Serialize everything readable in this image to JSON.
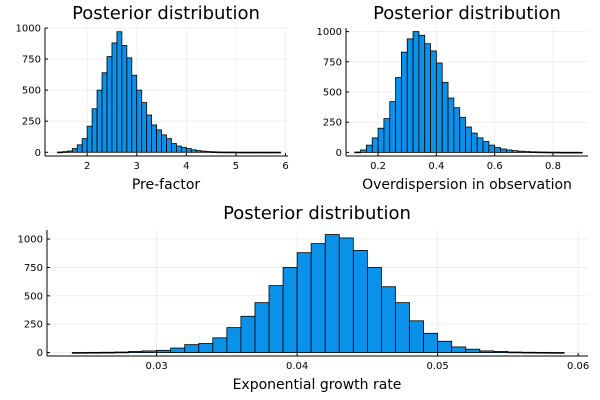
{
  "colors": {
    "bar": "#0a92ea",
    "bar_edge": "#000000",
    "grid": "#e6e6e6",
    "axis": "#000000"
  },
  "chart_data": [
    {
      "type": "bar",
      "title": "Posterior distribution",
      "xlabel": "Pre-factor",
      "ylabel": "",
      "grid": true,
      "xlim": [
        1.15,
        6.05
      ],
      "ylim": [
        -30,
        1000
      ],
      "xticks": [
        2,
        3,
        4,
        5,
        6
      ],
      "xtick_labels": [
        "2",
        "3",
        "4",
        "5",
        "6"
      ],
      "yticks": [
        0,
        250,
        500,
        750,
        1000
      ],
      "ytick_labels": [
        "0",
        "250",
        "500",
        "750",
        "1000"
      ],
      "bin_start": 1.4,
      "bin_width": 0.1,
      "values": [
        2,
        5,
        10,
        30,
        60,
        110,
        210,
        350,
        500,
        640,
        770,
        880,
        970,
        860,
        760,
        620,
        500,
        400,
        300,
        220,
        180,
        140,
        110,
        70,
        50,
        40,
        30,
        20,
        14,
        9,
        6,
        4,
        3,
        2,
        2,
        2,
        1,
        1,
        1,
        1,
        1,
        1,
        1,
        1,
        1
      ]
    },
    {
      "type": "bar",
      "title": "Posterior distribution",
      "xlabel": "Overdispersion in observation",
      "ylabel": "",
      "grid": true,
      "xlim": [
        0.09,
        0.92
      ],
      "ylim": [
        -30,
        1030
      ],
      "xticks": [
        0.2,
        0.4,
        0.6,
        0.8
      ],
      "xtick_labels": [
        "0.2",
        "0.4",
        "0.6",
        "0.8"
      ],
      "yticks": [
        0,
        250,
        500,
        750,
        1000
      ],
      "ytick_labels": [
        "0",
        "250",
        "500",
        "750",
        "1000"
      ],
      "bin_start": 0.12,
      "bin_width": 0.02,
      "values": [
        3,
        20,
        60,
        120,
        200,
        280,
        420,
        620,
        830,
        940,
        1000,
        970,
        900,
        840,
        740,
        580,
        450,
        370,
        290,
        210,
        160,
        120,
        90,
        60,
        40,
        28,
        20,
        14,
        10,
        7,
        5,
        4,
        3,
        2,
        2,
        1,
        1,
        1,
        1
      ]
    },
    {
      "type": "bar",
      "title": "Posterior distribution",
      "xlabel": "Exponential growth rate",
      "ylabel": "",
      "grid": true,
      "xlim": [
        0.0222,
        0.0607
      ],
      "ylim": [
        -30,
        1080
      ],
      "xticks": [
        0.03,
        0.04,
        0.05,
        0.06
      ],
      "xtick_labels": [
        "0.03",
        "0.04",
        "0.05",
        "0.06"
      ],
      "yticks": [
        0,
        250,
        500,
        750,
        1000
      ],
      "ytick_labels": [
        "0",
        "250",
        "500",
        "750",
        "1000"
      ],
      "bin_start": 0.024,
      "bin_width": 0.001,
      "values": [
        1,
        2,
        3,
        5,
        10,
        15,
        20,
        40,
        70,
        80,
        130,
        220,
        320,
        440,
        590,
        750,
        880,
        960,
        1040,
        1010,
        900,
        750,
        580,
        440,
        280,
        170,
        100,
        50,
        30,
        15,
        10,
        5,
        3,
        2,
        1
      ]
    }
  ]
}
